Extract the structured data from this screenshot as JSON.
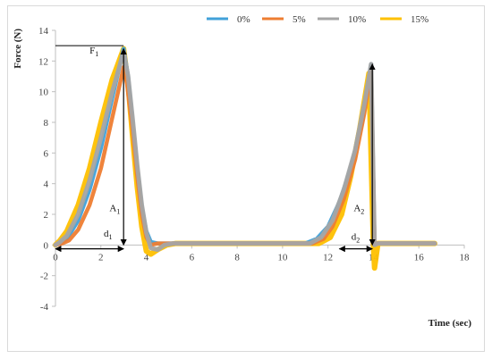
{
  "chart_data": {
    "type": "line",
    "title": "",
    "xlabel": "Time (sec)",
    "ylabel": "Force (N)",
    "xlim": [
      0,
      18
    ],
    "ylim": [
      -4,
      14
    ],
    "x_ticks": [
      0,
      2,
      4,
      6,
      8,
      10,
      12,
      14,
      16,
      18
    ],
    "y_ticks": [
      -4,
      -2,
      0,
      2,
      4,
      6,
      8,
      10,
      12,
      14
    ],
    "grid": false,
    "legend_position": "top-right",
    "series": [
      {
        "name": "0%",
        "color": "#41a1d9",
        "points": [
          [
            0,
            0
          ],
          [
            0.2,
            0.1
          ],
          [
            0.5,
            0.4
          ],
          [
            1.0,
            1.6
          ],
          [
            1.5,
            3.6
          ],
          [
            2.0,
            6.3
          ],
          [
            2.5,
            9.6
          ],
          [
            3.0,
            12.8
          ],
          [
            3.2,
            11.0
          ],
          [
            3.4,
            8.0
          ],
          [
            3.6,
            5.0
          ],
          [
            3.8,
            2.5
          ],
          [
            4.0,
            0.9
          ],
          [
            4.2,
            0.2
          ],
          [
            4.5,
            0.1
          ],
          [
            5,
            0.1
          ],
          [
            6,
            0.1
          ],
          [
            8,
            0.1
          ],
          [
            10,
            0.1
          ],
          [
            11.0,
            0.1
          ],
          [
            11.5,
            0.4
          ],
          [
            12.0,
            1.2
          ],
          [
            12.5,
            2.8
          ],
          [
            13.0,
            5.0
          ],
          [
            13.5,
            8.0
          ],
          [
            13.9,
            11.8
          ],
          [
            14.05,
            0
          ],
          [
            14.2,
            0.1
          ],
          [
            15,
            0.1
          ],
          [
            16.7,
            0.1
          ]
        ]
      },
      {
        "name": "5%",
        "color": "#ee7d31",
        "points": [
          [
            0,
            0
          ],
          [
            0.3,
            0.1
          ],
          [
            0.6,
            0.3
          ],
          [
            1.0,
            1.0
          ],
          [
            1.5,
            2.6
          ],
          [
            2.0,
            5.0
          ],
          [
            2.5,
            8.3
          ],
          [
            3.0,
            11.6
          ],
          [
            3.15,
            10.5
          ],
          [
            3.4,
            7.5
          ],
          [
            3.6,
            4.5
          ],
          [
            3.8,
            2.0
          ],
          [
            4.0,
            0.5
          ],
          [
            4.2,
            0.0
          ],
          [
            4.5,
            0.1
          ],
          [
            6,
            0.1
          ],
          [
            8,
            0.1
          ],
          [
            10,
            0.1
          ],
          [
            11.3,
            0.1
          ],
          [
            11.8,
            0.4
          ],
          [
            12.2,
            1.2
          ],
          [
            12.7,
            3.0
          ],
          [
            13.2,
            5.6
          ],
          [
            13.6,
            8.6
          ],
          [
            13.9,
            11.4
          ],
          [
            14.05,
            0
          ],
          [
            14.2,
            0.1
          ],
          [
            15,
            0.1
          ],
          [
            16.7,
            0.1
          ]
        ]
      },
      {
        "name": "10%",
        "color": "#a5a5a5",
        "points": [
          [
            0,
            0
          ],
          [
            0.2,
            0.2
          ],
          [
            0.5,
            0.6
          ],
          [
            1.0,
            2.0
          ],
          [
            1.5,
            4.2
          ],
          [
            2.0,
            7.0
          ],
          [
            2.5,
            10.0
          ],
          [
            3.0,
            12.6
          ],
          [
            3.2,
            11.0
          ],
          [
            3.4,
            8.2
          ],
          [
            3.6,
            5.2
          ],
          [
            3.8,
            2.6
          ],
          [
            4.0,
            0.8
          ],
          [
            4.2,
            -0.2
          ],
          [
            4.5,
            -0.3
          ],
          [
            4.8,
            0.0
          ],
          [
            5.2,
            0.1
          ],
          [
            6,
            0.1
          ],
          [
            8,
            0.1
          ],
          [
            10,
            0.1
          ],
          [
            11.2,
            0.1
          ],
          [
            11.7,
            0.5
          ],
          [
            12.2,
            1.6
          ],
          [
            12.7,
            3.6
          ],
          [
            13.2,
            6.2
          ],
          [
            13.6,
            9.2
          ],
          [
            13.9,
            11.8
          ],
          [
            14.05,
            0
          ],
          [
            14.2,
            0.1
          ],
          [
            15,
            0.1
          ],
          [
            16.7,
            0.1
          ]
        ]
      },
      {
        "name": "15%",
        "color": "#fec000",
        "points": [
          [
            0,
            0
          ],
          [
            0.2,
            0.3
          ],
          [
            0.5,
            0.9
          ],
          [
            1.0,
            2.6
          ],
          [
            1.5,
            5.0
          ],
          [
            2.0,
            8.0
          ],
          [
            2.5,
            10.8
          ],
          [
            3.0,
            12.8
          ],
          [
            3.2,
            10.5
          ],
          [
            3.4,
            7.0
          ],
          [
            3.6,
            3.8
          ],
          [
            3.8,
            1.2
          ],
          [
            4.0,
            -0.4
          ],
          [
            4.2,
            -0.6
          ],
          [
            4.5,
            -0.3
          ],
          [
            4.9,
            0.0
          ],
          [
            5.3,
            0.1
          ],
          [
            6,
            0.1
          ],
          [
            8,
            0.1
          ],
          [
            10,
            0.1
          ],
          [
            11.6,
            0.1
          ],
          [
            12.1,
            0.5
          ],
          [
            12.6,
            2.0
          ],
          [
            13.0,
            4.5
          ],
          [
            13.4,
            7.6
          ],
          [
            13.8,
            11.2
          ],
          [
            14.0,
            0
          ],
          [
            14.05,
            -1.5
          ],
          [
            14.2,
            0.1
          ],
          [
            15,
            0.1
          ],
          [
            16.7,
            0.1
          ]
        ]
      }
    ],
    "annotations": [
      {
        "label": "F",
        "sub": "1",
        "x": 1.9,
        "y": 12.5
      },
      {
        "label": "A",
        "sub": "1",
        "x": 2.85,
        "y": 2.2
      },
      {
        "label": "d",
        "sub": "1",
        "x": 2.5,
        "y": 0.55
      },
      {
        "label": "A",
        "sub": "2",
        "x": 13.6,
        "y": 2.2
      },
      {
        "label": "d",
        "sub": "2",
        "x": 13.4,
        "y": 0.35
      }
    ],
    "markers": {
      "f1_line": {
        "x0": 0,
        "x1": 3.0,
        "y": 13.0
      },
      "a1_arrow": {
        "x": 3.0,
        "y0": 0,
        "y1": 12.8
      },
      "d1_arrow": {
        "x0": 0,
        "x1": 3.0,
        "y": -0.25
      },
      "a2_arrow": {
        "x": 13.95,
        "y0": 0,
        "y1": 11.8
      },
      "d2_arrow": {
        "x0": 12.5,
        "x1": 13.95,
        "y": -0.25
      }
    }
  }
}
